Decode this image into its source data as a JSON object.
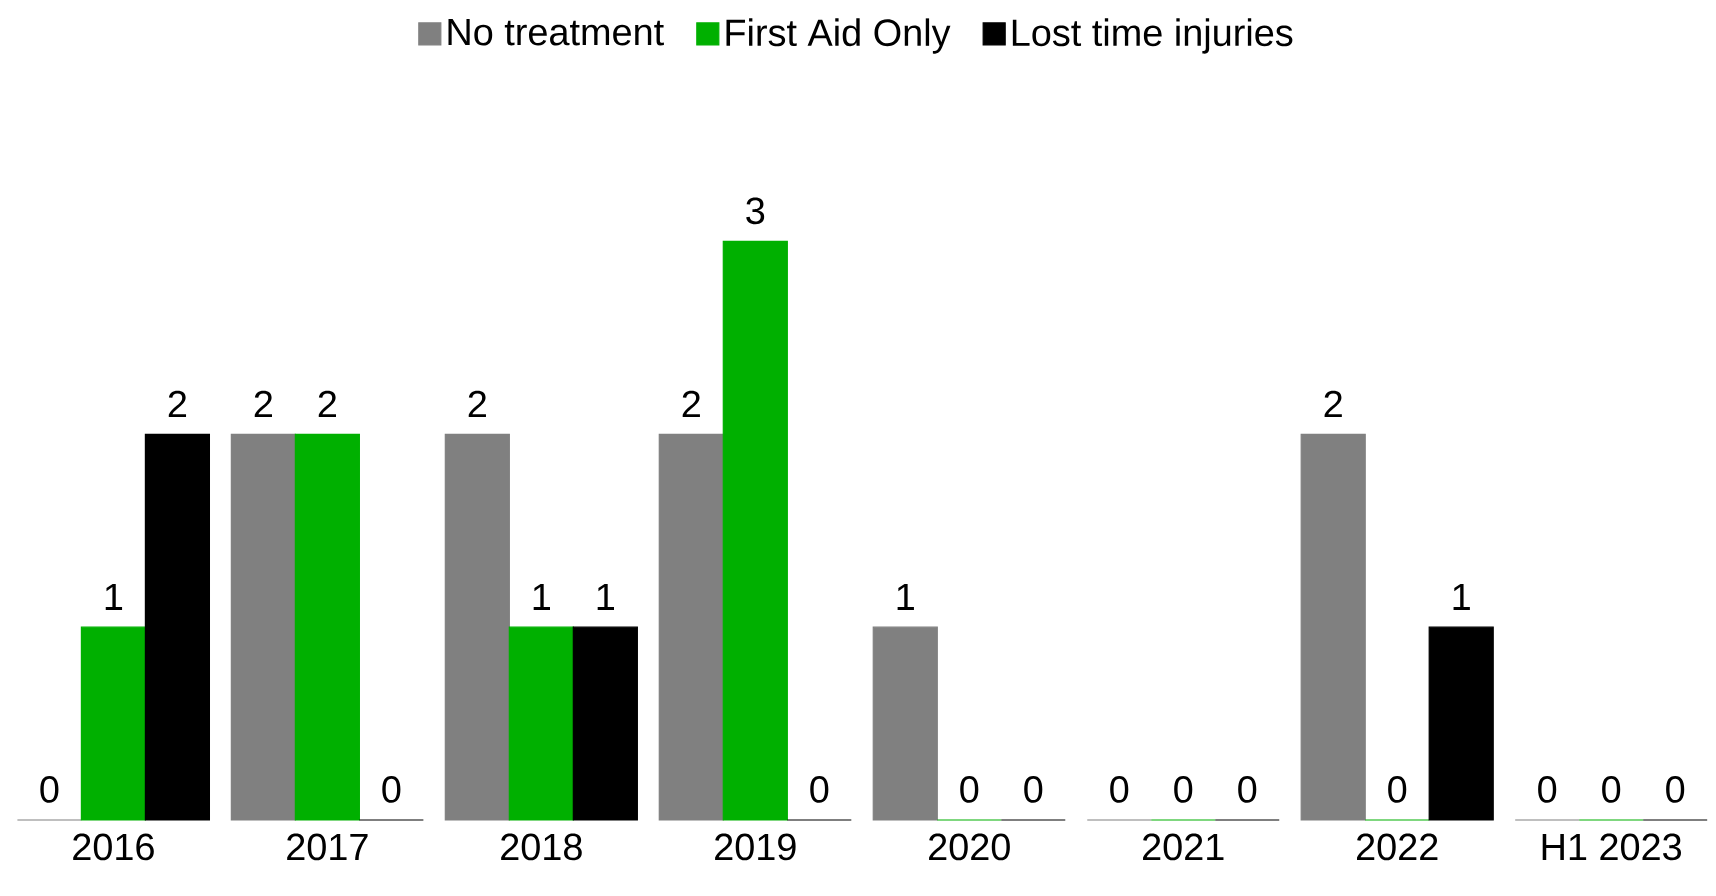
{
  "chart_data": {
    "type": "bar",
    "categories": [
      "2016",
      "2017",
      "2018",
      "2019",
      "2020",
      "2021",
      "2022",
      "H1 2023"
    ],
    "series": [
      {
        "name": "No treatment",
        "color": "#808080",
        "values": [
          0,
          2,
          2,
          2,
          1,
          0,
          2,
          0
        ]
      },
      {
        "name": "First Aid Only",
        "color": "#00b000",
        "values": [
          1,
          2,
          1,
          3,
          0,
          0,
          0,
          0
        ]
      },
      {
        "name": "Lost time injuries",
        "color": "#000000",
        "values": [
          2,
          0,
          1,
          0,
          0,
          0,
          1,
          0
        ]
      }
    ],
    "data_labels": true,
    "legend": "top",
    "grid": false
  }
}
